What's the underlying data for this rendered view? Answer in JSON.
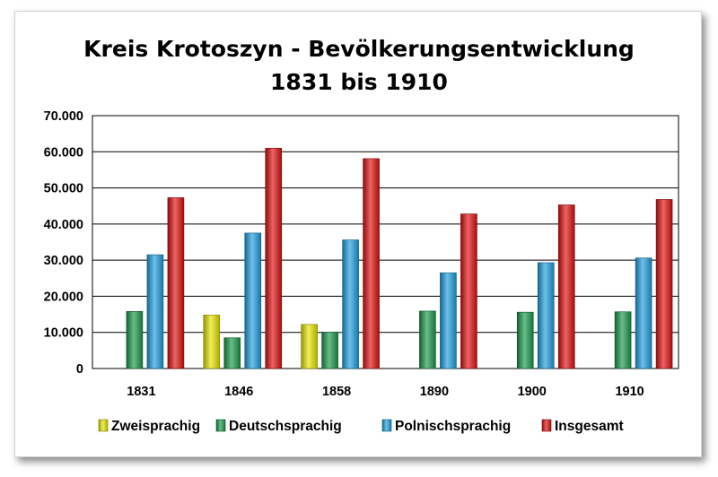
{
  "chart_data": {
    "type": "bar",
    "title_line1": "Kreis Krotoszyn - Bevölkerungsentwicklung",
    "title_line2": "1831 bis 1910",
    "categories": [
      "1831",
      "1846",
      "1858",
      "1890",
      "1900",
      "1910"
    ],
    "ylim": [
      0,
      70000
    ],
    "yticks": [
      0,
      10000,
      20000,
      30000,
      40000,
      50000,
      60000,
      70000
    ],
    "ytick_labels": [
      "0",
      "10.000",
      "20.000",
      "30.000",
      "40.000",
      "50.000",
      "60.000",
      "70.000"
    ],
    "grid": true,
    "legend_position": "bottom",
    "series": [
      {
        "name": "Zweisprachig",
        "color": "#e6e600",
        "values": [
          0,
          14800,
          12200,
          0,
          0,
          0
        ]
      },
      {
        "name": "Deutschsprachig",
        "color": "#1a9a4a",
        "values": [
          15800,
          8500,
          10100,
          15900,
          15600,
          15700
        ]
      },
      {
        "name": "Polnischsprachig",
        "color": "#1ea0e0",
        "values": [
          31500,
          37500,
          35600,
          26500,
          29300,
          30600
        ]
      },
      {
        "name": "Insgesamt",
        "color": "#e01010",
        "values": [
          47300,
          61000,
          58100,
          42800,
          45300,
          46800
        ]
      }
    ]
  }
}
